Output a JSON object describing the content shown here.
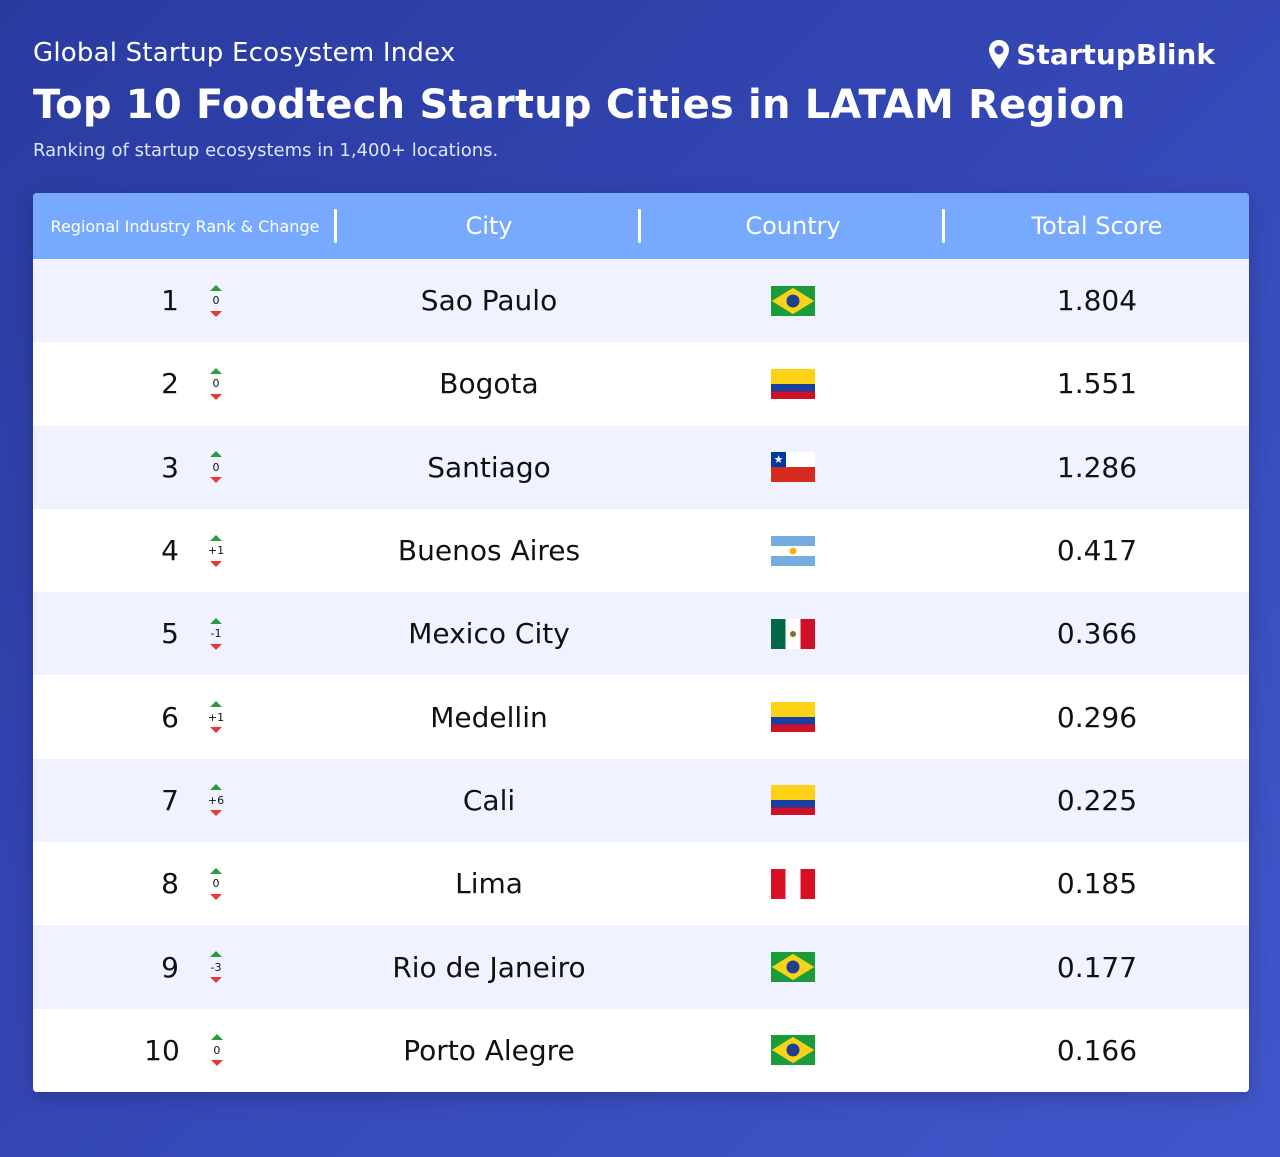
{
  "header": {
    "supertitle": "Global Startup Ecosystem Index",
    "title": "Top 10 Foodtech Startup Cities in LATAM Region",
    "subtitle": "Ranking of startup ecosystems in 1,400+ locations.",
    "brand": "StartupBlink"
  },
  "table": {
    "columns": [
      "Regional Industry Rank & Change",
      "City",
      "Country",
      "Total Score"
    ],
    "rows": [
      {
        "rank": "1",
        "change": "0",
        "city": "Sao Paulo",
        "flag": "br",
        "score": "1.804"
      },
      {
        "rank": "2",
        "change": "0",
        "city": "Bogota",
        "flag": "co",
        "score": "1.551"
      },
      {
        "rank": "3",
        "change": "0",
        "city": "Santiago",
        "flag": "cl",
        "score": "1.286"
      },
      {
        "rank": "4",
        "change": "+1",
        "city": "Buenos Aires",
        "flag": "ar",
        "score": "0.417"
      },
      {
        "rank": "5",
        "change": "-1",
        "city": "Mexico City",
        "flag": "mx",
        "score": "0.366"
      },
      {
        "rank": "6",
        "change": "+1",
        "city": "Medellin",
        "flag": "co",
        "score": "0.296"
      },
      {
        "rank": "7",
        "change": "+6",
        "city": "Cali",
        "flag": "co",
        "score": "0.225"
      },
      {
        "rank": "8",
        "change": "0",
        "city": "Lima",
        "flag": "pe",
        "score": "0.185"
      },
      {
        "rank": "9",
        "change": "-3",
        "city": "Rio de Janeiro",
        "flag": "br",
        "score": "0.177"
      },
      {
        "rank": "10",
        "change": "0",
        "city": "Porto Alegre",
        "flag": "br",
        "score": "0.166"
      }
    ]
  },
  "colors": {
    "header_row": "#77aaff",
    "up": "#2e9b3e",
    "down": "#e53935"
  }
}
